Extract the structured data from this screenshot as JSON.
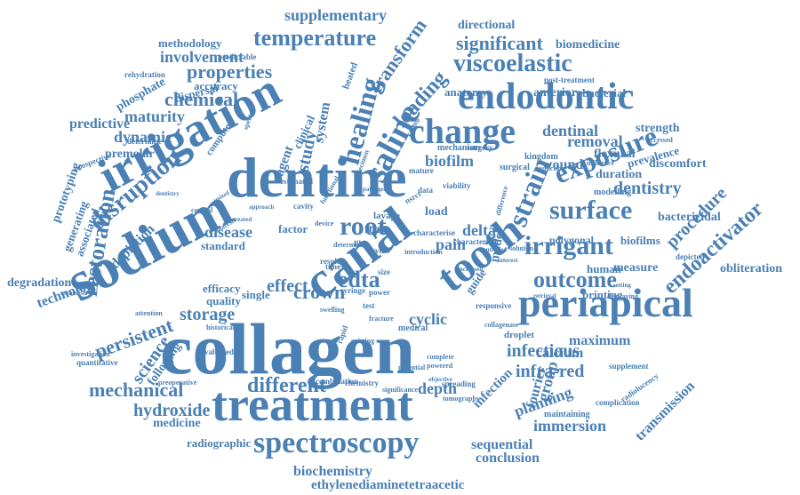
{
  "color": "#4a80b4",
  "words": [
    "collagen",
    "dentine",
    "sodium",
    "treatment",
    "irrigation",
    "canal",
    "periapical",
    "tooth",
    "endodontic",
    "change",
    "spectroscopy",
    "root",
    "saline",
    "exposure",
    "healing",
    "irrigant",
    "surface",
    "strain",
    "disruption",
    "viscoelastic",
    "restoration",
    "temperature",
    "outcome",
    "endoactivator",
    "edta",
    "properties",
    "transform",
    "loading",
    "mechanical",
    "different",
    "infectious",
    "hydroxide",
    "supplementary",
    "significant",
    "removal",
    "storage",
    "effect",
    "crown",
    "infra-red",
    "planning",
    "procedure",
    "dentistry",
    "chemical",
    "maturity",
    "dynamic",
    "involvement",
    "depth",
    "cyclic",
    "delta",
    "pain",
    "persistent",
    "science",
    "technology",
    "immersion",
    "sequential",
    "conclusion",
    "biochemistry",
    "ethylenediaminetetraacetic",
    "study",
    "system",
    "biofilm",
    "group",
    "fourier",
    "transmission",
    "calcium",
    "maximum",
    "methodology",
    "directional",
    "biomedicine",
    "predictive",
    "phosphate",
    "premolar",
    "disease",
    "depiction",
    "degradation",
    "radiographic",
    "medicine",
    "following",
    "prototyping",
    "generating",
    "associated",
    "wound",
    "duration",
    "discomfort",
    "bactericidal",
    "obliteration",
    "measure",
    "human",
    "anatomy",
    "anterior",
    "bacterial",
    "dentinal",
    "strength",
    "flexural",
    "prevalence",
    "accuracy",
    "dispersal",
    "quality",
    "efficacy",
    "single",
    "infection",
    "agent",
    "model",
    "guide",
    "ftir",
    "load",
    "factor",
    "standard",
    "printing",
    "biofilms",
    "polygonal",
    "clinical",
    "computer",
    "heated",
    "prospective",
    "predictable",
    "modelling",
    "radiolucency",
    "complication",
    "maintaining",
    "supplement",
    "evaluated",
    "historical",
    "quantitative",
    "preoperative",
    "combination",
    "chemistry",
    "significance",
    "potential",
    "complete",
    "powered",
    "spreading",
    "tomography",
    "medical",
    "droplet",
    "cavity",
    "mature",
    "determine",
    "rehydration",
    "post-treatment",
    "determined",
    "film",
    "size",
    "time",
    "rapid",
    "mechanism",
    "surgery",
    "surgical",
    "kingdom",
    "reduction",
    "influence",
    "depicted",
    "accessed",
    "displaying",
    "characteristic",
    "responsive",
    "lavage",
    "syringe",
    "power",
    "review",
    "result",
    "test",
    "nsrct",
    "data",
    "control",
    "analysis",
    "device",
    "spectra",
    "attention",
    "investigation",
    "functional",
    "estimated",
    "characterise",
    "viability",
    "difference",
    "killing",
    "solution",
    "introduction",
    "establish",
    "united",
    "approach",
    "controlled",
    "objective",
    "fracture",
    "swelling",
    "treated",
    "existing",
    "setting",
    "collagenase",
    "retrieval",
    "interest",
    "dentistry",
    "specimen",
    "increased",
    "pathogens",
    "underwent",
    "multiple",
    "cause",
    "primary"
  ]
}
